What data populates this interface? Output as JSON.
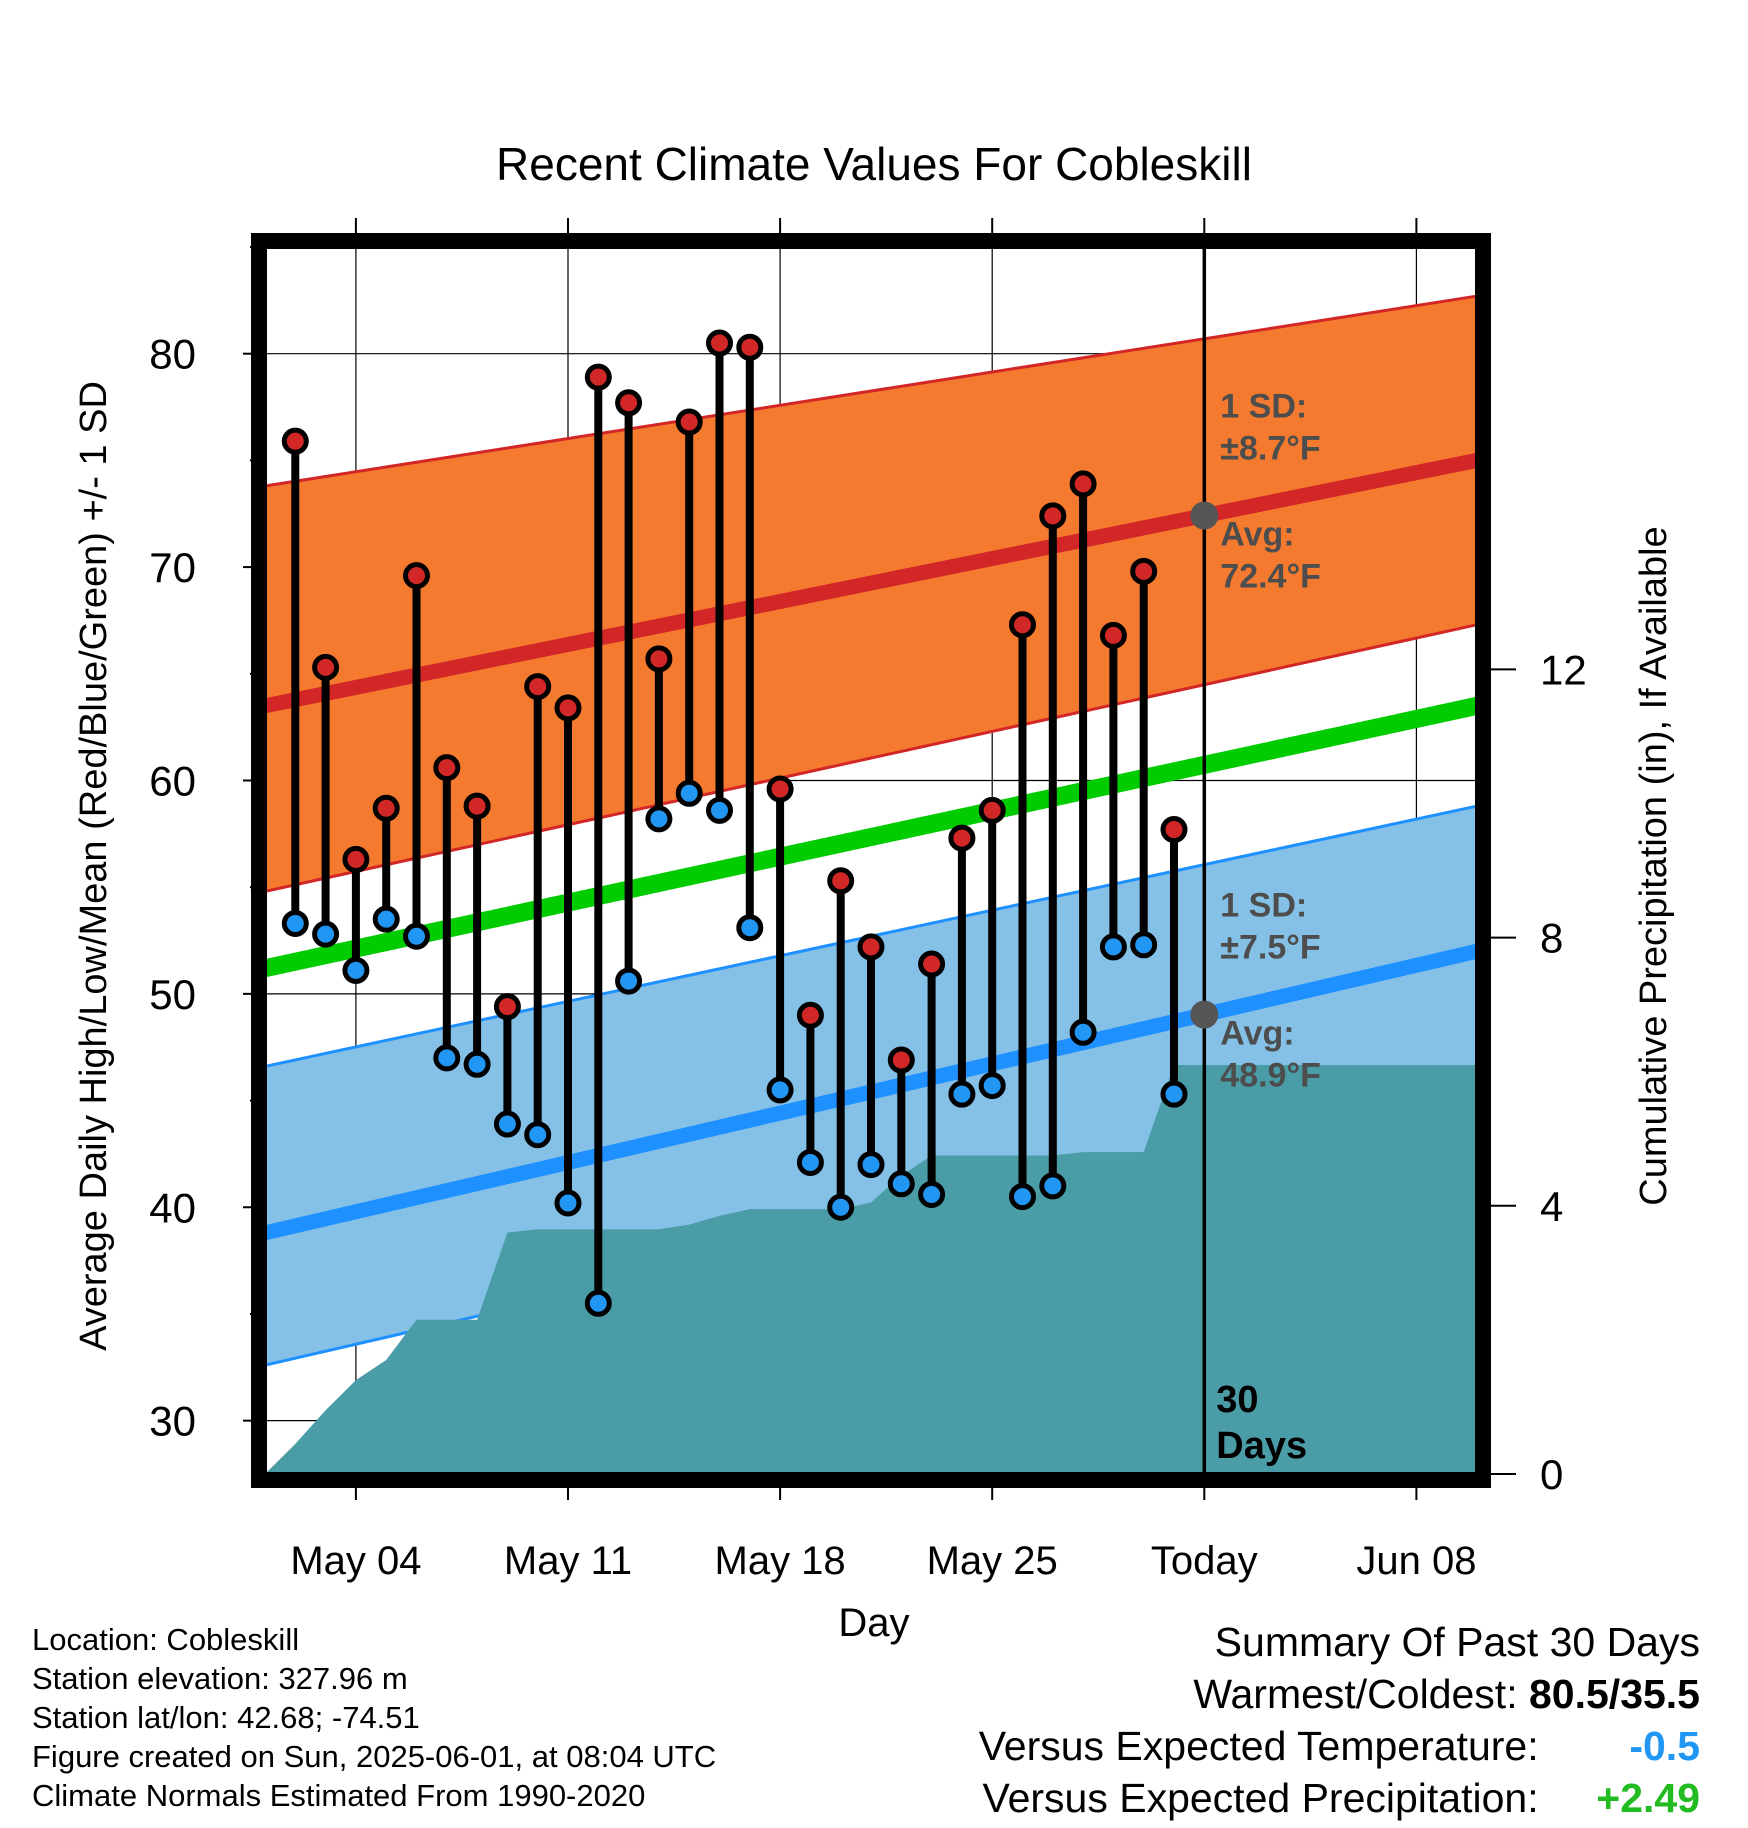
{
  "chart_data": {
    "type": "line",
    "title": "Recent Climate Values For Cobleskill",
    "xlabel": "Day",
    "ylabel": "Average Daily High/Low/Mean (Red/Blue/Green) +/- 1 SD",
    "ylabel_right": "Cumulative Precipitation (in), If Available",
    "ylim": [
      27.5,
      85
    ],
    "ylim_right": [
      0,
      18.3
    ],
    "yticks": [
      30,
      40,
      50,
      60,
      70,
      80
    ],
    "yticks_right": [
      0,
      4,
      8,
      12
    ],
    "x_start": "2025-05-01",
    "x_end": "2025-06-10",
    "x_tick_labels": [
      "May 04",
      "May 11",
      "May 18",
      "May 25",
      "Today",
      "Jun 08"
    ],
    "x_tick_dates": [
      "2025-05-04",
      "2025-05-11",
      "2025-05-18",
      "2025-05-25",
      "2025-06-01",
      "2025-06-08"
    ],
    "today": "2025-06-01",
    "today_label": "30 Days",
    "high_label": "1 SD:\n±8.7°F",
    "high_avg_label": "Avg:\n72.4°F",
    "low_label": "1 SD:\n±7.5°F",
    "low_avg_label": "Avg:\n48.9°F",
    "normal_high": {
      "dates": [
        "2025-05-01",
        "2025-06-10"
      ],
      "avg": [
        63.5,
        75.0
      ],
      "upper": [
        73.8,
        82.7
      ],
      "lower": [
        54.8,
        67.3
      ]
    },
    "normal_low": {
      "dates": [
        "2025-05-01",
        "2025-06-10"
      ],
      "avg": [
        38.8,
        52.0
      ],
      "upper": [
        46.6,
        58.8
      ],
      "lower": [
        32.6,
        45.7
      ]
    },
    "normal_mean": {
      "dates": [
        "2025-05-01",
        "2025-06-10"
      ],
      "values": [
        51.2,
        63.5
      ]
    },
    "observed": {
      "dates": [
        "2025-05-02",
        "2025-05-03",
        "2025-05-04",
        "2025-05-05",
        "2025-05-06",
        "2025-05-07",
        "2025-05-08",
        "2025-05-09",
        "2025-05-10",
        "2025-05-11",
        "2025-05-12",
        "2025-05-13",
        "2025-05-14",
        "2025-05-15",
        "2025-05-16",
        "2025-05-17",
        "2025-05-18",
        "2025-05-19",
        "2025-05-20",
        "2025-05-21",
        "2025-05-22",
        "2025-05-23",
        "2025-05-24",
        "2025-05-25",
        "2025-05-26",
        "2025-05-27",
        "2025-05-28",
        "2025-05-29",
        "2025-05-30",
        "2025-05-31"
      ],
      "high": [
        75.9,
        65.3,
        56.3,
        58.7,
        69.6,
        60.6,
        58.8,
        49.4,
        64.4,
        63.4,
        78.9,
        77.7,
        65.7,
        76.8,
        80.5,
        80.3,
        59.6,
        49.0,
        55.3,
        52.2,
        46.9,
        51.4,
        57.3,
        58.6,
        67.3,
        72.4,
        73.9,
        66.8,
        69.8,
        57.7
      ],
      "low": [
        53.3,
        52.8,
        51.1,
        53.5,
        52.7,
        47.0,
        46.7,
        43.9,
        43.4,
        40.2,
        35.5,
        50.6,
        58.2,
        59.4,
        58.6,
        53.1,
        45.5,
        42.1,
        40.0,
        42.0,
        41.1,
        40.6,
        45.3,
        45.7,
        40.5,
        41.0,
        48.2,
        52.2,
        52.3,
        45.3
      ]
    },
    "precipitation": {
      "dates": [
        "2025-05-01",
        "2025-05-02",
        "2025-05-03",
        "2025-05-04",
        "2025-05-05",
        "2025-05-06",
        "2025-05-07",
        "2025-05-08",
        "2025-05-09",
        "2025-05-10",
        "2025-05-11",
        "2025-05-12",
        "2025-05-13",
        "2025-05-14",
        "2025-05-15",
        "2025-05-16",
        "2025-05-17",
        "2025-05-18",
        "2025-05-19",
        "2025-05-20",
        "2025-05-21",
        "2025-05-22",
        "2025-05-23",
        "2025-05-24",
        "2025-05-25",
        "2025-05-26",
        "2025-05-27",
        "2025-05-28",
        "2025-05-29",
        "2025-05-30",
        "2025-05-31",
        "2025-06-01",
        "2025-06-10"
      ],
      "cumulative": [
        0.0,
        0.45,
        0.95,
        1.4,
        1.7,
        2.3,
        2.3,
        2.3,
        3.6,
        3.65,
        3.65,
        3.65,
        3.65,
        3.65,
        3.72,
        3.85,
        3.95,
        3.95,
        3.95,
        3.95,
        4.05,
        4.45,
        4.75,
        4.75,
        4.75,
        4.75,
        4.75,
        4.8,
        4.8,
        4.8,
        6.1,
        6.1,
        6.1
      ]
    },
    "grid": true,
    "colors": {
      "high_band": "#f47a30",
      "high_avg": "#d32626",
      "low_band": "#85c1e6",
      "low_avg": "#1e90ff",
      "mean": "#00cc00",
      "precip": "#4a9ca6",
      "high_marker": "#d22727",
      "low_marker": "#2196f3",
      "annotation": "#4d4d4d"
    }
  },
  "info": {
    "location": "Location: Cobleskill",
    "elevation": "Station elevation: 327.96 m",
    "latlon": "Station lat/lon: 42.68; -74.51",
    "created": "Figure created on Sun, 2025-06-01, at 08:04 UTC",
    "normals": "Climate Normals Estimated From 1990-2020"
  },
  "summary": {
    "title": "Summary Of Past 30 Days",
    "warm_cold_label": "Warmest/Coldest:",
    "warm_cold_value": "80.5/35.5",
    "temp_label": "Versus Expected Temperature:",
    "temp_value": "-0.5",
    "temp_color": "#2196f3",
    "precip_label": "Versus Expected Precipitation:",
    "precip_value": "+2.49",
    "precip_color": "#22bb22"
  }
}
